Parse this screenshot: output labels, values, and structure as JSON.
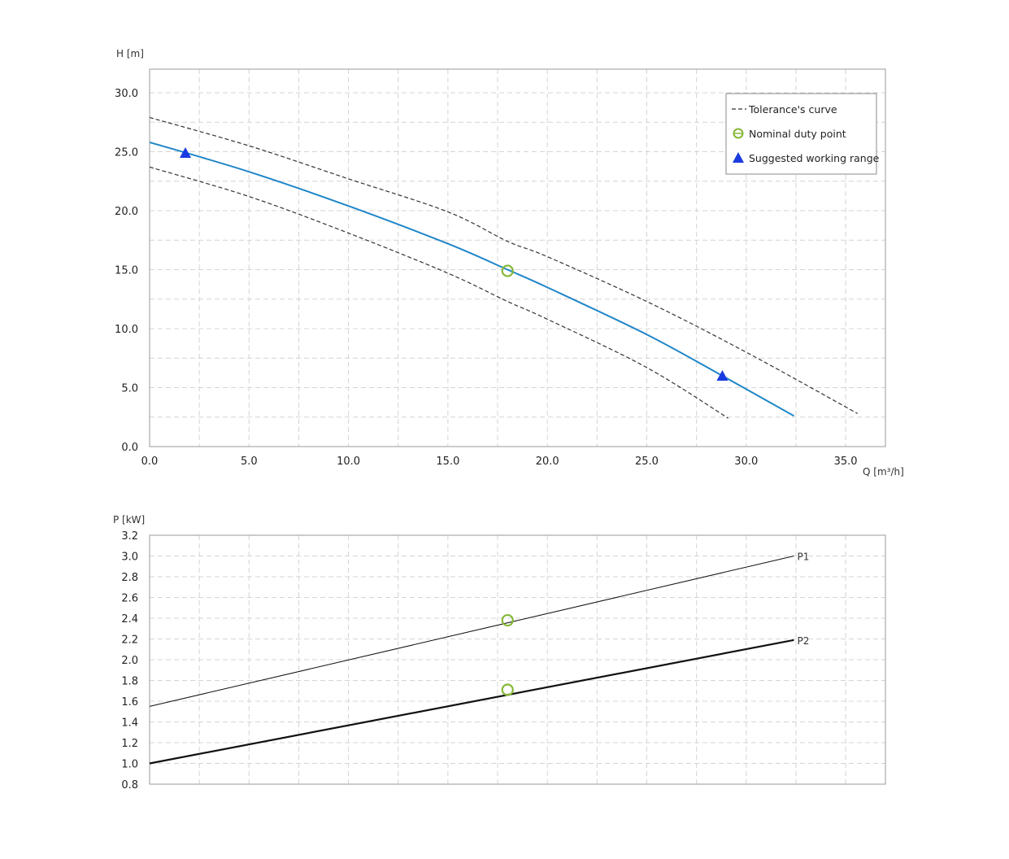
{
  "chart_data": [
    {
      "type": "line",
      "ylabel": "H [m]",
      "xlabel": "Q [m³/h]",
      "xlim": [
        0,
        37
      ],
      "ylim": [
        0,
        32
      ],
      "x_ticks": [
        "0.0",
        "5.0",
        "10.0",
        "15.0",
        "20.0",
        "25.0",
        "30.0",
        "35.0"
      ],
      "y_ticks": [
        "0.0",
        "5.0",
        "10.0",
        "15.0",
        "20.0",
        "25.0",
        "30.0"
      ],
      "grid": true,
      "legend_position": "top-right",
      "legend": [
        {
          "label": "Tolerance's curve",
          "marker": "dashed-line"
        },
        {
          "label": "Nominal duty point",
          "marker": "circle"
        },
        {
          "label": "Suggested working range",
          "marker": "triangle"
        }
      ],
      "series": [
        {
          "role": "main",
          "color": "#1f86c8",
          "points": [
            [
              0,
              25.8
            ],
            [
              5,
              23.3
            ],
            [
              10,
              20.4
            ],
            [
              15,
              17.2
            ],
            [
              18,
              15.0
            ],
            [
              20,
              13.5
            ],
            [
              25,
              9.5
            ],
            [
              28.8,
              6.0
            ],
            [
              32.4,
              2.6
            ]
          ]
        },
        {
          "role": "tolerance-upper",
          "color": "#333333",
          "points": [
            [
              0,
              27.9
            ],
            [
              5,
              25.5
            ],
            [
              10,
              22.7
            ],
            [
              15,
              19.9
            ],
            [
              18,
              17.4
            ],
            [
              20,
              16.1
            ],
            [
              25,
              12.3
            ],
            [
              30,
              8.0
            ],
            [
              35.6,
              2.8
            ]
          ]
        },
        {
          "role": "tolerance-lower",
          "color": "#333333",
          "points": [
            [
              0,
              23.7
            ],
            [
              5,
              21.2
            ],
            [
              10,
              18.1
            ],
            [
              15,
              14.7
            ],
            [
              18,
              12.3
            ],
            [
              20,
              10.8
            ],
            [
              25,
              6.7
            ],
            [
              29.1,
              2.4
            ]
          ]
        }
      ],
      "duty_point": {
        "x": 18.0,
        "y": 14.9,
        "color": "#86b83a"
      },
      "working_range": [
        {
          "x": 1.8,
          "y": 24.9
        },
        {
          "x": 28.8,
          "y": 6.0
        }
      ],
      "working_range_color": "#1a3be0"
    },
    {
      "type": "line",
      "ylabel": "P [kW]",
      "xlim": [
        0,
        37
      ],
      "ylim": [
        0.8,
        3.2
      ],
      "x_grid": [
        0,
        2.5,
        5,
        7.5,
        10,
        12.5,
        15,
        17.5,
        20,
        22.5,
        25,
        27.5,
        30,
        32.5,
        35
      ],
      "y_ticks": [
        "3.2",
        "3.0",
        "2.8",
        "2.6",
        "2.4",
        "2.2",
        "2.0",
        "1.8",
        "1.6",
        "1.4",
        "1.2",
        "1.0",
        "0.8"
      ],
      "grid": true,
      "series": [
        {
          "name": "P1",
          "color": "#111111",
          "width": 1,
          "points": [
            [
              0,
              1.55
            ],
            [
              32.4,
              3.0
            ]
          ]
        },
        {
          "name": "P2",
          "color": "#111111",
          "width": 2.2,
          "points": [
            [
              0,
              1.0
            ],
            [
              32.4,
              2.19
            ]
          ]
        }
      ],
      "duty_points": [
        {
          "x": 18.0,
          "y": 2.38
        },
        {
          "x": 18.0,
          "y": 1.71
        }
      ],
      "duty_color": "#86b83a"
    }
  ]
}
